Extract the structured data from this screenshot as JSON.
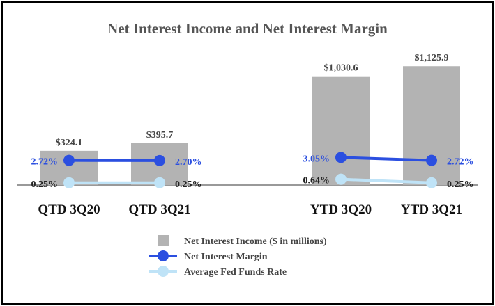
{
  "chart_data": {
    "type": "bar",
    "title": "Net Interest Income and Net Interest Margin",
    "categories": [
      "QTD 3Q20",
      "QTD 3Q21",
      "YTD 3Q20",
      "YTD 3Q21"
    ],
    "groups": [
      [
        "QTD 3Q20",
        "QTD 3Q21"
      ],
      [
        "YTD 3Q20",
        "YTD 3Q21"
      ]
    ],
    "series": [
      {
        "name": "Net Interest Income ($ in millions)",
        "kind": "bar",
        "color": "#b3b3b3",
        "values": [
          324.1,
          395.7,
          1030.6,
          1125.9
        ],
        "labels": [
          "$324.1",
          "$395.7",
          "$1,030.6",
          "$1,125.9"
        ]
      },
      {
        "name": "Net Interest Margin",
        "kind": "line",
        "color": "#2b4fe0",
        "label_color": "#2b4fe0",
        "values": [
          2.72,
          2.7,
          3.05,
          2.72
        ],
        "labels": [
          "2.72%",
          "2.70%",
          "3.05%",
          "2.72%"
        ]
      },
      {
        "name": "Average Fed Funds Rate",
        "kind": "line",
        "color": "#bfe3f7",
        "label_color": "#222222",
        "values": [
          0.25,
          0.25,
          0.64,
          0.25
        ],
        "labels": [
          "0.25%",
          "0.25%",
          "0.64%",
          "0.25%"
        ]
      }
    ],
    "bar_ylim": [
      0,
      1200
    ],
    "rate_ylim": [
      0,
      14
    ],
    "legend": {
      "position": "bottom-center"
    },
    "grid": false
  }
}
